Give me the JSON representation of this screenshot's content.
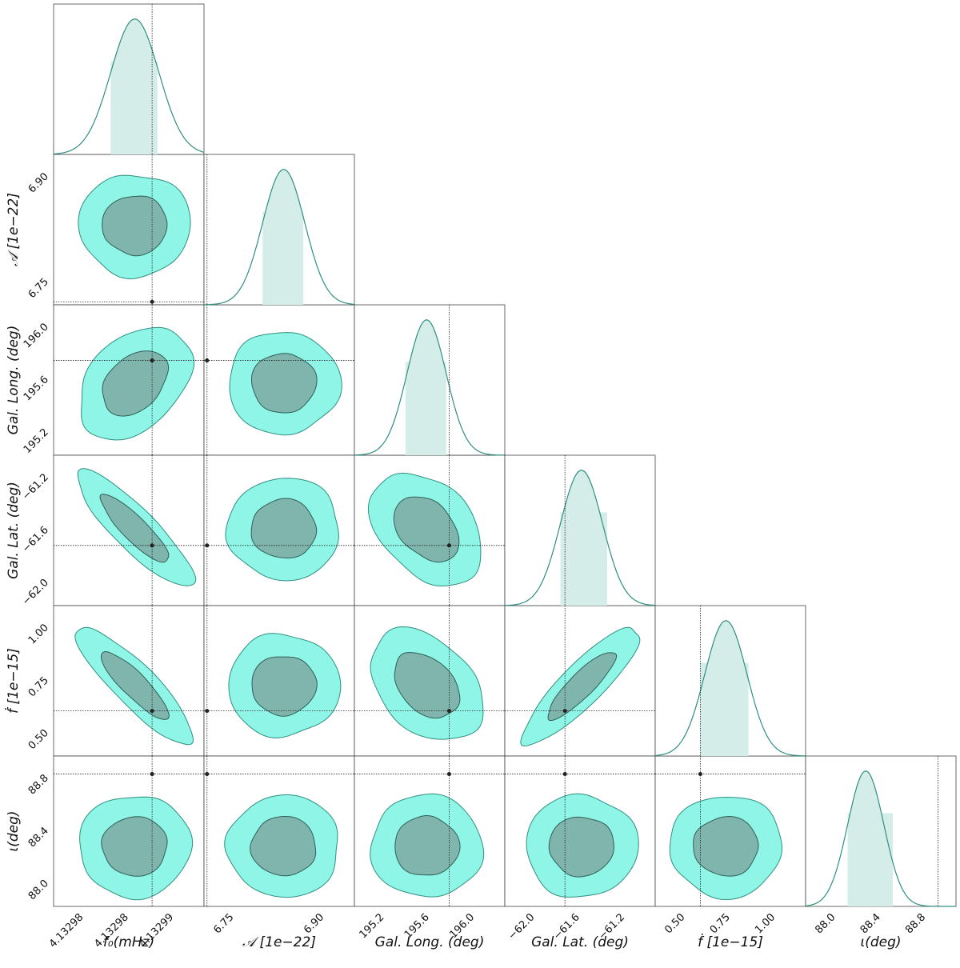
{
  "chart_data": {
    "type": "corner",
    "parameters": [
      {
        "label": "f₀(mHz)",
        "ticks": [
          "4.13298",
          "4.13298",
          "4.13299"
        ],
        "truth_frac": 0.655,
        "mode_frac": 0.54,
        "sigma_frac": 0.16,
        "ci_frac": [
          0.38,
          0.69
        ]
      },
      {
        "label": "𝒜 [1e−22]",
        "ticks": [
          "6.75",
          "6.90"
        ],
        "truth_frac": 0.02,
        "mode_frac": 0.53,
        "sigma_frac": 0.14,
        "ci_frac": [
          0.39,
          0.66
        ]
      },
      {
        "label": "Gal. Long. (deg)",
        "ticks": [
          "195.2",
          "195.6",
          "196.0"
        ],
        "truth_frac": 0.63,
        "mode_frac": 0.48,
        "sigma_frac": 0.13,
        "ci_frac": [
          0.34,
          0.61
        ]
      },
      {
        "label": "Gal. Lat. (deg)",
        "ticks": [
          "−62.0",
          "−61.6",
          "−61.2"
        ],
        "truth_frac": 0.4,
        "mode_frac": 0.51,
        "sigma_frac": 0.14,
        "ci_frac": [
          0.37,
          0.68
        ]
      },
      {
        "label": "ḟ [1e−15]",
        "ticks": [
          "0.50",
          "0.75",
          "1.00"
        ],
        "truth_frac": 0.3,
        "mode_frac": 0.47,
        "sigma_frac": 0.14,
        "ci_frac": [
          0.3,
          0.62
        ]
      },
      {
        "label": "ι(deg)",
        "ticks": [
          "88.0",
          "88.4",
          "88.8"
        ],
        "truth_frac": 0.88,
        "mode_frac": 0.4,
        "sigma_frac": 0.12,
        "ci_frac": [
          0.28,
          0.58
        ]
      }
    ],
    "y_axis_labels": [
      "𝒜 [1e−22]",
      "Gal. Long. (deg)",
      "Gal. Lat. (deg)",
      "ḟ [1e−15]",
      "ι(deg)"
    ],
    "y_ticks": [
      [
        "6.75",
        "6.90"
      ],
      [
        "195.2",
        "195.6",
        "196.0"
      ],
      [
        "−62.0",
        "−61.6",
        "−61.2"
      ],
      [
        "0.50",
        "0.75",
        "1.00"
      ],
      [
        "88.0",
        "88.4",
        "88.8"
      ]
    ],
    "x_ticks": [
      [
        "4.13298",
        "4.13298",
        "4.13299"
      ],
      [
        "6.75",
        "6.90"
      ],
      [
        "195.2",
        "195.6",
        "196.0"
      ],
      [
        "−62.0",
        "−61.6",
        "−61.2"
      ],
      [
        "0.50",
        "0.75",
        "1.00"
      ],
      [
        "88.0",
        "88.4",
        "88.8"
      ]
    ],
    "correlations": {
      "1-0": 0.05,
      "2-0": 0.55,
      "2-1": 0.05,
      "3-0": -0.92,
      "3-1": 0.05,
      "3-2": -0.45,
      "4-0": -0.92,
      "4-1": 0.05,
      "4-2": -0.45,
      "4-3": 0.9,
      "5-0": 0.0,
      "5-1": 0.0,
      "5-2": 0.0,
      "5-3": 0.0,
      "5-4": 0.0
    },
    "colors": {
      "outer_fill": "#8ff5e6",
      "inner_fill": "#7fb5ac",
      "edge": "#2f8f80",
      "ci_fill": "#d4ede8",
      "truth_line": "#222222",
      "frame": "#444444"
    },
    "grid": false
  }
}
